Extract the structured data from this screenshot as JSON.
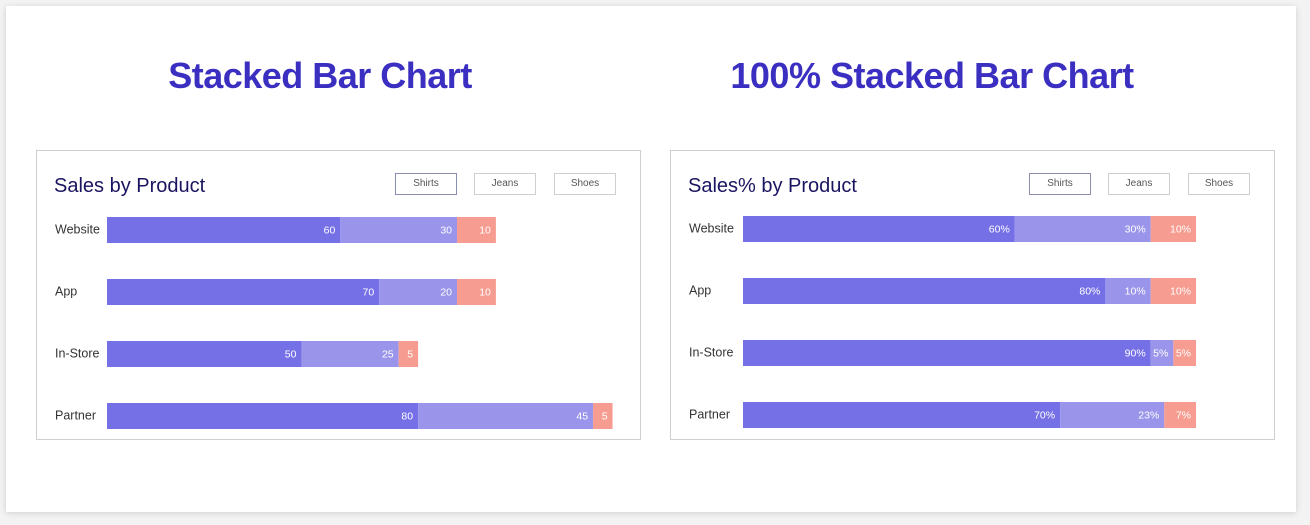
{
  "left_heading": "Stacked Bar Chart",
  "right_heading": "100% Stacked Bar Chart",
  "colors": {
    "shirts": "#7570e6",
    "jeans": "#9a95ea",
    "shoes": "#f79c90"
  },
  "chart_data": [
    {
      "type": "bar",
      "orientation": "horizontal",
      "stacked": true,
      "title": "Sales by Product",
      "legend": [
        "Shirts",
        "Jeans",
        "Shoes"
      ],
      "categories": [
        "Website",
        "App",
        "In-Store",
        "Partner"
      ],
      "series": [
        {
          "name": "Shirts",
          "values": [
            60,
            70,
            50,
            80
          ],
          "labels": [
            "60",
            "70",
            "50",
            "80"
          ]
        },
        {
          "name": "Jeans",
          "values": [
            30,
            20,
            25,
            45
          ],
          "labels": [
            "30",
            "20",
            "25",
            "45"
          ]
        },
        {
          "name": "Shoes",
          "values": [
            10,
            10,
            5,
            5
          ],
          "labels": [
            "10",
            "10",
            "5",
            "5"
          ]
        }
      ],
      "xlim": [
        0,
        135
      ],
      "grid": false,
      "legend_position": "top-right"
    },
    {
      "type": "bar",
      "orientation": "horizontal",
      "stacked": true,
      "normalized": true,
      "title": "Sales% by Product",
      "legend": [
        "Shirts",
        "Jeans",
        "Shoes"
      ],
      "categories": [
        "Website",
        "App",
        "In-Store",
        "Partner"
      ],
      "series": [
        {
          "name": "Shirts",
          "values": [
            60,
            80,
            90,
            70
          ],
          "labels": [
            "60%",
            "80%",
            "90%",
            "70%"
          ]
        },
        {
          "name": "Jeans",
          "values": [
            30,
            10,
            5,
            23
          ],
          "labels": [
            "30%",
            "10%",
            "5%",
            "23%"
          ]
        },
        {
          "name": "Shoes",
          "values": [
            10,
            10,
            5,
            7
          ],
          "labels": [
            "10%",
            "10%",
            "5%",
            "7%"
          ]
        }
      ],
      "xlim": [
        0,
        100
      ],
      "grid": false,
      "legend_position": "top-right"
    }
  ]
}
